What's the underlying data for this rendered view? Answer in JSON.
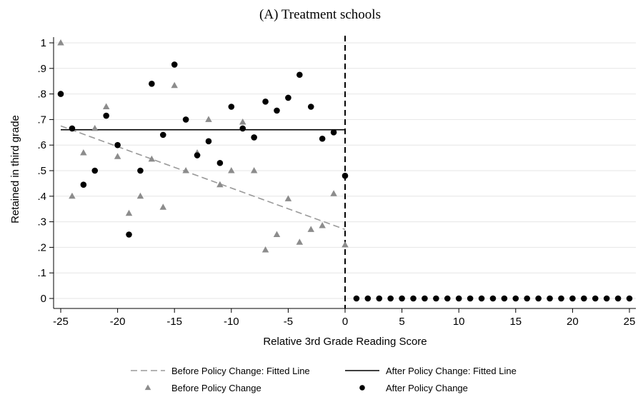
{
  "chart_data": {
    "type": "scatter",
    "title": "(A) Treatment schools",
    "xlabel": "Relative 3rd Grade Reading Score",
    "ylabel": "Retained in third grade",
    "xlim": [
      -25,
      25
    ],
    "ylim": [
      0,
      1
    ],
    "xticks": [
      -25,
      -20,
      -15,
      -10,
      -5,
      0,
      5,
      10,
      15,
      20,
      25
    ],
    "xtick_labels": [
      "-25",
      "-20",
      "-15",
      "-10",
      "-5",
      "0",
      "5",
      "10",
      "15",
      "20",
      "25"
    ],
    "yticks": [
      0,
      0.1,
      0.2,
      0.3,
      0.4,
      0.5,
      0.6,
      0.7,
      0.8,
      0.9,
      1
    ],
    "ytick_labels": [
      "0",
      ".1",
      ".2",
      ".3",
      ".4",
      ".5",
      ".6",
      ".7",
      ".8",
      ".9",
      "1"
    ],
    "cutoff_x": 0,
    "grid": "horizontal",
    "legend_position": "bottom",
    "series": [
      {
        "name": "Before Policy Change: Fitted Line",
        "kind": "line",
        "style": "dashed",
        "color": "#9a9a9a",
        "x": [
          -25,
          0
        ],
        "y": [
          0.675,
          0.27
        ]
      },
      {
        "name": "After Policy Change: Fitted Line",
        "kind": "line",
        "style": "solid",
        "color": "#000000",
        "x": [
          -25,
          0
        ],
        "y": [
          0.66,
          0.66
        ]
      },
      {
        "name": "Before Policy Change",
        "kind": "points",
        "marker": "triangle",
        "color": "#8c8c8c",
        "x": [
          -25,
          -24,
          -23,
          -22,
          -21,
          -20,
          -19,
          -18,
          -17,
          -16,
          -15,
          -14,
          -13,
          -12,
          -11,
          -10,
          -9,
          -8,
          -7,
          -6,
          -5,
          -4,
          -3,
          -2,
          -1,
          0
        ],
        "y": [
          1.0,
          0.4,
          0.57,
          0.665,
          0.75,
          0.555,
          0.333,
          0.4,
          0.545,
          0.357,
          0.833,
          0.5,
          0.57,
          0.7,
          0.445,
          0.5,
          0.69,
          0.5,
          0.19,
          0.25,
          0.39,
          0.22,
          0.27,
          0.285,
          0.41,
          0.21
        ]
      },
      {
        "name": "After Policy Change",
        "kind": "points",
        "marker": "circle",
        "color": "#000000",
        "x": [
          -25,
          -24,
          -23,
          -22,
          -21,
          -20,
          -19,
          -18,
          -17,
          -16,
          -15,
          -14,
          -13,
          -12,
          -11,
          -10,
          -9,
          -8,
          -7,
          -6,
          -5,
          -4,
          -3,
          -2,
          -1,
          0,
          1,
          2,
          3,
          4,
          5,
          6,
          7,
          8,
          9,
          10,
          11,
          12,
          13,
          14,
          15,
          16,
          17,
          18,
          19,
          20,
          21,
          22,
          23,
          24,
          25
        ],
        "y": [
          0.8,
          0.665,
          0.445,
          0.5,
          0.715,
          0.6,
          0.25,
          0.5,
          0.84,
          0.64,
          0.915,
          0.7,
          0.56,
          0.615,
          0.53,
          0.75,
          0.665,
          0.63,
          0.77,
          0.735,
          0.785,
          0.875,
          0.75,
          0.625,
          0.65,
          0.48,
          0,
          0,
          0,
          0,
          0,
          0,
          0,
          0,
          0,
          0,
          0,
          0,
          0,
          0,
          0,
          0,
          0,
          0,
          0,
          0,
          0,
          0,
          0,
          0,
          0
        ]
      }
    ],
    "legend": [
      "Before Policy Change: Fitted Line",
      "After Policy Change: Fitted Line",
      "Before Policy Change",
      "After Policy Change"
    ]
  }
}
